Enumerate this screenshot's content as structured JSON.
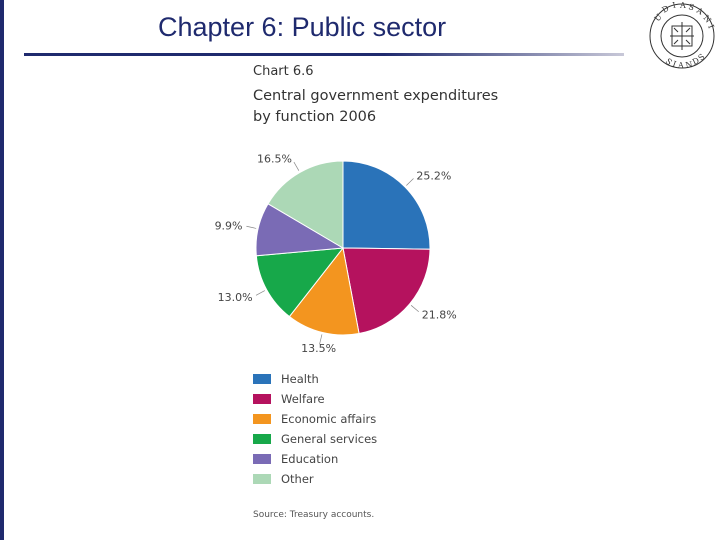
{
  "slide": {
    "title": "Chapter 6: Public sector"
  },
  "logo": {
    "text": "UDIAS ANI SIANDS"
  },
  "chart_data": {
    "type": "pie",
    "chart_number": "Chart 6.6",
    "title": "Central government expenditures by function 2006",
    "slices": [
      {
        "name": "Health",
        "value": 25.2,
        "label": "25.2%",
        "color": "#2a73b9"
      },
      {
        "name": "Welfare",
        "value": 21.8,
        "label": "21.8%",
        "color": "#b5125e"
      },
      {
        "name": "Economic affairs",
        "value": 13.5,
        "label": "13.5%",
        "color": "#f3951f"
      },
      {
        "name": "General services",
        "value": 13.0,
        "label": "13.0%",
        "color": "#17a84a"
      },
      {
        "name": "Education",
        "value": 9.9,
        "label": "9.9%",
        "color": "#7a6bb5"
      },
      {
        "name": "Other",
        "value": 16.5,
        "label": "16.5%",
        "color": "#acd8b6"
      }
    ],
    "source": "Source: Treasury accounts."
  }
}
